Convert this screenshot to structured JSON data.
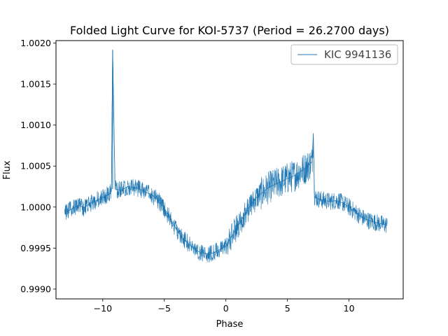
{
  "chart_data": {
    "type": "line",
    "title": "Folded Light Curve for KOI-5737 (Period = 26.2700 days)",
    "xlabel": "Phase",
    "ylabel": "Flux",
    "xlim": [
      -13.8,
      14.4
    ],
    "ylim": [
      0.99888,
      1.00203
    ],
    "xticks": [
      -10,
      -5,
      0,
      5,
      10
    ],
    "xtick_labels": [
      "−10",
      "−5",
      "0",
      "5",
      "10"
    ],
    "yticks": [
      0.999,
      0.9995,
      1.0,
      1.0005,
      1.001,
      1.0015,
      1.002
    ],
    "ytick_labels": [
      "0.9990",
      "0.9995",
      "1.0000",
      "1.0005",
      "1.0010",
      "1.0015",
      "1.0020"
    ],
    "legend_position": "top-right",
    "grid": false,
    "series": [
      {
        "name": "KIC 9941136",
        "color": "#1f77b4",
        "x": [
          -13.1,
          -12.5,
          -12.0,
          -11.5,
          -11.0,
          -10.5,
          -10.0,
          -9.5,
          -9.3,
          -9.2,
          -9.0,
          -8.5,
          -8.0,
          -7.5,
          -7.0,
          -6.5,
          -6.0,
          -5.5,
          -5.0,
          -4.5,
          -4.0,
          -3.5,
          -3.0,
          -2.5,
          -2.0,
          -1.5,
          -1.0,
          -0.5,
          0.0,
          0.5,
          1.0,
          1.5,
          2.0,
          2.5,
          3.0,
          3.5,
          4.0,
          4.5,
          5.0,
          5.5,
          6.0,
          6.5,
          7.0,
          7.1,
          7.2,
          7.5,
          8.0,
          8.5,
          9.0,
          9.5,
          10.0,
          10.5,
          11.0,
          11.5,
          12.0,
          12.5,
          13.1
        ],
        "y": [
          0.99992,
          0.99998,
          1.00002,
          0.99999,
          1.00005,
          1.00008,
          1.00012,
          1.00015,
          1.00019,
          1.00192,
          1.00022,
          1.0002,
          1.00025,
          1.00024,
          1.00022,
          1.00018,
          1.00015,
          1.00008,
          0.99998,
          0.99985,
          0.99972,
          0.99962,
          0.99955,
          0.99948,
          0.99944,
          0.99943,
          0.99944,
          0.99948,
          0.99952,
          0.99965,
          0.99978,
          0.9999,
          1.00002,
          1.00012,
          1.00018,
          1.00024,
          1.00028,
          1.00031,
          1.00035,
          1.00038,
          1.00043,
          1.00048,
          1.00055,
          1.0009,
          1.00012,
          1.0001,
          1.00008,
          1.00007,
          1.00008,
          1.00005,
          1.0,
          0.99994,
          0.99988,
          0.99984,
          0.99982,
          0.9998,
          0.99978
        ]
      }
    ]
  }
}
